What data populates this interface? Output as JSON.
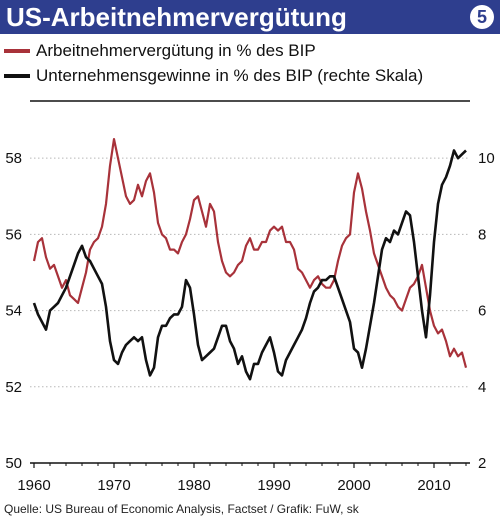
{
  "header": {
    "title": "US-Arbeitnehmervergütung",
    "badge": "5"
  },
  "colors": {
    "header_bg": "#2e3e8e",
    "series_compensation": "#a8323a",
    "series_profits": "#111111"
  },
  "source": "Quelle: US Bureau of Economic Analysis, Factset / Grafik: FuW, sk",
  "chart_data": {
    "type": "line",
    "legend": [
      "Arbeitnehmervergütung in % des BIP",
      "Unternehmensgewinne in % des BIP (rechte Skala)"
    ],
    "x_ticks": [
      1960,
      1970,
      1980,
      1990,
      2000,
      2010
    ],
    "xlim": [
      1959.5,
      2014.5
    ],
    "y_left": {
      "ticks": [
        50,
        52,
        54,
        56,
        58
      ],
      "lim": [
        50,
        59.5
      ]
    },
    "y_right": {
      "ticks": [
        2,
        4,
        6,
        8,
        10
      ],
      "lim": [
        2,
        11.5
      ]
    },
    "grid": "horizontal",
    "series": [
      {
        "name": "Arbeitnehmervergütung in % des BIP",
        "axis": "left",
        "points": [
          [
            1960.0,
            55.3
          ],
          [
            1960.5,
            55.8
          ],
          [
            1961.0,
            55.9
          ],
          [
            1961.5,
            55.4
          ],
          [
            1962.0,
            55.1
          ],
          [
            1962.5,
            55.2
          ],
          [
            1963.0,
            54.9
          ],
          [
            1963.5,
            54.6
          ],
          [
            1964.0,
            54.8
          ],
          [
            1964.5,
            54.4
          ],
          [
            1965.0,
            54.3
          ],
          [
            1965.5,
            54.2
          ],
          [
            1966.0,
            54.6
          ],
          [
            1966.5,
            55.0
          ],
          [
            1967.0,
            55.6
          ],
          [
            1967.5,
            55.8
          ],
          [
            1968.0,
            55.9
          ],
          [
            1968.5,
            56.2
          ],
          [
            1969.0,
            56.8
          ],
          [
            1969.5,
            57.8
          ],
          [
            1970.0,
            58.5
          ],
          [
            1970.5,
            58.0
          ],
          [
            1971.0,
            57.5
          ],
          [
            1971.5,
            57.0
          ],
          [
            1972.0,
            56.8
          ],
          [
            1972.5,
            56.9
          ],
          [
            1973.0,
            57.3
          ],
          [
            1973.5,
            57.0
          ],
          [
            1974.0,
            57.4
          ],
          [
            1974.5,
            57.6
          ],
          [
            1975.0,
            57.1
          ],
          [
            1975.5,
            56.3
          ],
          [
            1976.0,
            56.0
          ],
          [
            1976.5,
            55.9
          ],
          [
            1977.0,
            55.6
          ],
          [
            1977.5,
            55.6
          ],
          [
            1978.0,
            55.5
          ],
          [
            1978.5,
            55.8
          ],
          [
            1979.0,
            56.0
          ],
          [
            1979.5,
            56.4
          ],
          [
            1980.0,
            56.9
          ],
          [
            1980.5,
            57.0
          ],
          [
            1981.0,
            56.6
          ],
          [
            1981.5,
            56.2
          ],
          [
            1982.0,
            56.8
          ],
          [
            1982.5,
            56.6
          ],
          [
            1983.0,
            55.8
          ],
          [
            1983.5,
            55.3
          ],
          [
            1984.0,
            55.0
          ],
          [
            1984.5,
            54.9
          ],
          [
            1985.0,
            55.0
          ],
          [
            1985.5,
            55.2
          ],
          [
            1986.0,
            55.3
          ],
          [
            1986.5,
            55.7
          ],
          [
            1987.0,
            55.9
          ],
          [
            1987.5,
            55.6
          ],
          [
            1988.0,
            55.6
          ],
          [
            1988.5,
            55.8
          ],
          [
            1989.0,
            55.8
          ],
          [
            1989.5,
            56.1
          ],
          [
            1990.0,
            56.2
          ],
          [
            1990.5,
            56.1
          ],
          [
            1991.0,
            56.2
          ],
          [
            1991.5,
            55.8
          ],
          [
            1992.0,
            55.8
          ],
          [
            1992.5,
            55.6
          ],
          [
            1993.0,
            55.1
          ],
          [
            1993.5,
            55.0
          ],
          [
            1994.0,
            54.8
          ],
          [
            1994.5,
            54.6
          ],
          [
            1995.0,
            54.8
          ],
          [
            1995.5,
            54.9
          ],
          [
            1996.0,
            54.7
          ],
          [
            1996.5,
            54.6
          ],
          [
            1997.0,
            54.6
          ],
          [
            1997.5,
            54.8
          ],
          [
            1998.0,
            55.3
          ],
          [
            1998.5,
            55.7
          ],
          [
            1999.0,
            55.9
          ],
          [
            1999.5,
            56.0
          ],
          [
            2000.0,
            57.1
          ],
          [
            2000.5,
            57.6
          ],
          [
            2001.0,
            57.2
          ],
          [
            2001.5,
            56.6
          ],
          [
            2002.0,
            56.1
          ],
          [
            2002.5,
            55.5
          ],
          [
            2003.0,
            55.2
          ],
          [
            2003.5,
            54.9
          ],
          [
            2004.0,
            54.6
          ],
          [
            2004.5,
            54.4
          ],
          [
            2005.0,
            54.3
          ],
          [
            2005.5,
            54.1
          ],
          [
            2006.0,
            54.0
          ],
          [
            2006.5,
            54.3
          ],
          [
            2007.0,
            54.6
          ],
          [
            2007.5,
            54.7
          ],
          [
            2008.0,
            54.9
          ],
          [
            2008.5,
            55.2
          ],
          [
            2009.0,
            54.6
          ],
          [
            2009.5,
            54.0
          ],
          [
            2010.0,
            53.6
          ],
          [
            2010.5,
            53.4
          ],
          [
            2011.0,
            53.5
          ],
          [
            2011.5,
            53.2
          ],
          [
            2012.0,
            52.8
          ],
          [
            2012.5,
            53.0
          ],
          [
            2013.0,
            52.8
          ],
          [
            2013.5,
            52.9
          ],
          [
            2014.0,
            52.5
          ]
        ]
      },
      {
        "name": "Unternehmensgewinne in % des BIP (rechte Skala)",
        "axis": "right",
        "points": [
          [
            1960.0,
            6.2
          ],
          [
            1960.5,
            5.9
          ],
          [
            1961.0,
            5.7
          ],
          [
            1961.5,
            5.5
          ],
          [
            1962.0,
            6.0
          ],
          [
            1962.5,
            6.1
          ],
          [
            1963.0,
            6.2
          ],
          [
            1963.5,
            6.4
          ],
          [
            1964.0,
            6.6
          ],
          [
            1964.5,
            6.9
          ],
          [
            1965.0,
            7.2
          ],
          [
            1965.5,
            7.5
          ],
          [
            1966.0,
            7.7
          ],
          [
            1966.5,
            7.4
          ],
          [
            1967.0,
            7.3
          ],
          [
            1967.5,
            7.1
          ],
          [
            1968.0,
            6.9
          ],
          [
            1968.5,
            6.7
          ],
          [
            1969.0,
            6.1
          ],
          [
            1969.5,
            5.2
          ],
          [
            1970.0,
            4.7
          ],
          [
            1970.5,
            4.6
          ],
          [
            1971.0,
            4.9
          ],
          [
            1971.5,
            5.1
          ],
          [
            1972.0,
            5.2
          ],
          [
            1972.5,
            5.3
          ],
          [
            1973.0,
            5.2
          ],
          [
            1973.5,
            5.3
          ],
          [
            1974.0,
            4.7
          ],
          [
            1974.5,
            4.3
          ],
          [
            1975.0,
            4.5
          ],
          [
            1975.5,
            5.3
          ],
          [
            1976.0,
            5.6
          ],
          [
            1976.5,
            5.6
          ],
          [
            1977.0,
            5.8
          ],
          [
            1977.5,
            5.9
          ],
          [
            1978.0,
            5.9
          ],
          [
            1978.5,
            6.1
          ],
          [
            1979.0,
            6.8
          ],
          [
            1979.5,
            6.6
          ],
          [
            1980.0,
            5.9
          ],
          [
            1980.5,
            5.1
          ],
          [
            1981.0,
            4.7
          ],
          [
            1981.5,
            4.8
          ],
          [
            1982.0,
            4.9
          ],
          [
            1982.5,
            5.0
          ],
          [
            1983.0,
            5.3
          ],
          [
            1983.5,
            5.6
          ],
          [
            1984.0,
            5.6
          ],
          [
            1984.5,
            5.2
          ],
          [
            1985.0,
            5.0
          ],
          [
            1985.5,
            4.6
          ],
          [
            1986.0,
            4.8
          ],
          [
            1986.5,
            4.4
          ],
          [
            1987.0,
            4.2
          ],
          [
            1987.5,
            4.6
          ],
          [
            1988.0,
            4.6
          ],
          [
            1988.5,
            4.9
          ],
          [
            1989.0,
            5.1
          ],
          [
            1989.5,
            5.3
          ],
          [
            1990.0,
            4.9
          ],
          [
            1990.5,
            4.4
          ],
          [
            1991.0,
            4.3
          ],
          [
            1991.5,
            4.7
          ],
          [
            1992.0,
            4.9
          ],
          [
            1992.5,
            5.1
          ],
          [
            1993.0,
            5.3
          ],
          [
            1993.5,
            5.5
          ],
          [
            1994.0,
            5.8
          ],
          [
            1994.5,
            6.2
          ],
          [
            1995.0,
            6.5
          ],
          [
            1995.5,
            6.6
          ],
          [
            1996.0,
            6.8
          ],
          [
            1996.5,
            6.8
          ],
          [
            1997.0,
            6.9
          ],
          [
            1997.5,
            6.9
          ],
          [
            1998.0,
            6.6
          ],
          [
            1998.5,
            6.3
          ],
          [
            1999.0,
            6.0
          ],
          [
            1999.5,
            5.7
          ],
          [
            2000.0,
            5.0
          ],
          [
            2000.5,
            4.9
          ],
          [
            2001.0,
            4.5
          ],
          [
            2001.5,
            5.0
          ],
          [
            2002.0,
            5.6
          ],
          [
            2002.5,
            6.2
          ],
          [
            2003.0,
            6.9
          ],
          [
            2003.5,
            7.6
          ],
          [
            2004.0,
            7.9
          ],
          [
            2004.5,
            7.8
          ],
          [
            2005.0,
            8.1
          ],
          [
            2005.5,
            8.0
          ],
          [
            2006.0,
            8.3
          ],
          [
            2006.5,
            8.6
          ],
          [
            2007.0,
            8.5
          ],
          [
            2007.5,
            7.8
          ],
          [
            2008.0,
            6.9
          ],
          [
            2008.5,
            6.0
          ],
          [
            2009.0,
            5.3
          ],
          [
            2009.5,
            6.4
          ],
          [
            2010.0,
            7.8
          ],
          [
            2010.5,
            8.8
          ],
          [
            2011.0,
            9.3
          ],
          [
            2011.5,
            9.5
          ],
          [
            2012.0,
            9.8
          ],
          [
            2012.5,
            10.2
          ],
          [
            2013.0,
            10.0
          ],
          [
            2013.5,
            10.1
          ],
          [
            2014.0,
            10.2
          ]
        ]
      }
    ]
  }
}
